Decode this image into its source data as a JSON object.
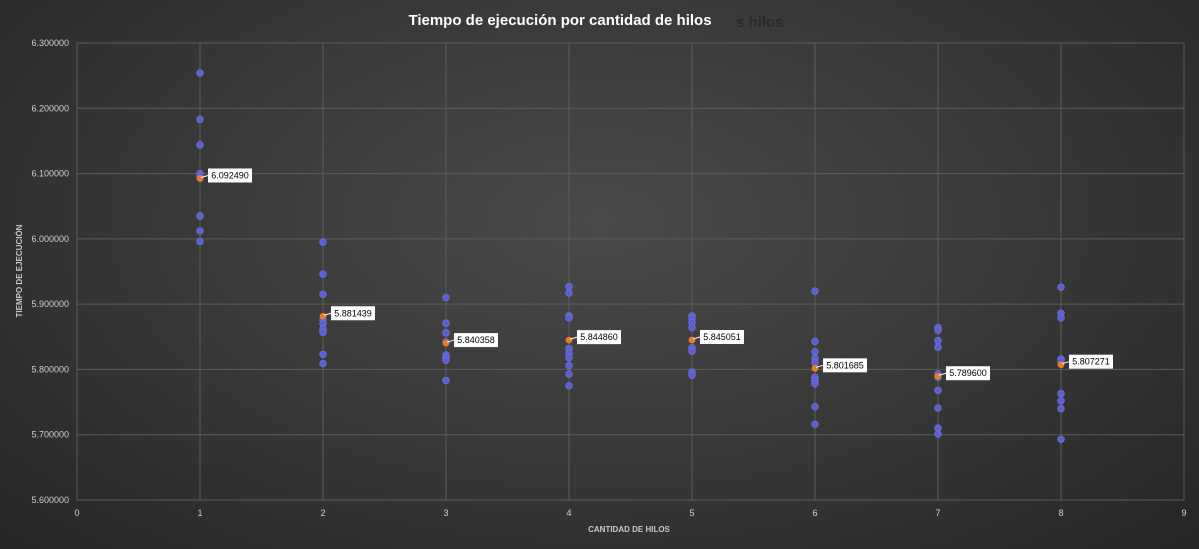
{
  "chart_data": {
    "type": "scatter",
    "title": "Tiempo de ejecución por cantidad de hilos",
    "title_ghost": "s hilos",
    "xlabel": "CANTIDAD DE HILOS",
    "ylabel": "TIEMPO DE EJECUCIÓN",
    "xlim": [
      0,
      9
    ],
    "ylim": [
      5.6,
      6.3
    ],
    "x_ticks": [
      "0",
      "1",
      "2",
      "3",
      "4",
      "5",
      "6",
      "7",
      "8",
      "9"
    ],
    "y_ticks": [
      "5.600000",
      "5.700000",
      "5.800000",
      "5.900000",
      "6.000000",
      "6.100000",
      "6.200000",
      "6.300000"
    ],
    "grid": true,
    "legend": "none",
    "colors": {
      "samples": "#5b5fd1",
      "average": "#e87a2e",
      "grid": "#5c5c5c",
      "text": "#d0d0d0",
      "label_bg": "#ffffff",
      "label_text": "#000000"
    },
    "series": [
      {
        "role": "samples",
        "points": [
          {
            "x": 1,
            "y": 6.254
          },
          {
            "x": 1,
            "y": 6.183
          },
          {
            "x": 1,
            "y": 6.144
          },
          {
            "x": 1,
            "y": 6.1
          },
          {
            "x": 1,
            "y": 6.095
          },
          {
            "x": 1,
            "y": 6.035
          },
          {
            "x": 1,
            "y": 6.012
          },
          {
            "x": 1,
            "y": 5.996
          },
          {
            "x": 2,
            "y": 5.995
          },
          {
            "x": 2,
            "y": 5.946
          },
          {
            "x": 2,
            "y": 5.915
          },
          {
            "x": 2,
            "y": 5.876
          },
          {
            "x": 2,
            "y": 5.87
          },
          {
            "x": 2,
            "y": 5.862
          },
          {
            "x": 2,
            "y": 5.857
          },
          {
            "x": 2,
            "y": 5.823
          },
          {
            "x": 2,
            "y": 5.809
          },
          {
            "x": 3,
            "y": 5.91
          },
          {
            "x": 3,
            "y": 5.871
          },
          {
            "x": 3,
            "y": 5.856
          },
          {
            "x": 3,
            "y": 5.842
          },
          {
            "x": 3,
            "y": 5.822
          },
          {
            "x": 3,
            "y": 5.818
          },
          {
            "x": 3,
            "y": 5.814
          },
          {
            "x": 3,
            "y": 5.783
          },
          {
            "x": 4,
            "y": 5.927
          },
          {
            "x": 4,
            "y": 5.917
          },
          {
            "x": 4,
            "y": 5.882
          },
          {
            "x": 4,
            "y": 5.879
          },
          {
            "x": 4,
            "y": 5.832
          },
          {
            "x": 4,
            "y": 5.825
          },
          {
            "x": 4,
            "y": 5.818
          },
          {
            "x": 4,
            "y": 5.806
          },
          {
            "x": 4,
            "y": 5.793
          },
          {
            "x": 4,
            "y": 5.775
          },
          {
            "x": 5,
            "y": 5.882
          },
          {
            "x": 5,
            "y": 5.878
          },
          {
            "x": 5,
            "y": 5.872
          },
          {
            "x": 5,
            "y": 5.864
          },
          {
            "x": 5,
            "y": 5.833
          },
          {
            "x": 5,
            "y": 5.828
          },
          {
            "x": 5,
            "y": 5.796
          },
          {
            "x": 5,
            "y": 5.791
          },
          {
            "x": 6,
            "y": 5.92
          },
          {
            "x": 6,
            "y": 5.843
          },
          {
            "x": 6,
            "y": 5.827
          },
          {
            "x": 6,
            "y": 5.817
          },
          {
            "x": 6,
            "y": 5.81
          },
          {
            "x": 6,
            "y": 5.788
          },
          {
            "x": 6,
            "y": 5.783
          },
          {
            "x": 6,
            "y": 5.778
          },
          {
            "x": 6,
            "y": 5.743
          },
          {
            "x": 6,
            "y": 5.716
          },
          {
            "x": 7,
            "y": 5.864
          },
          {
            "x": 7,
            "y": 5.86
          },
          {
            "x": 7,
            "y": 5.844
          },
          {
            "x": 7,
            "y": 5.834
          },
          {
            "x": 7,
            "y": 5.793
          },
          {
            "x": 7,
            "y": 5.788
          },
          {
            "x": 7,
            "y": 5.768
          },
          {
            "x": 7,
            "y": 5.741
          },
          {
            "x": 7,
            "y": 5.71
          },
          {
            "x": 7,
            "y": 5.701
          },
          {
            "x": 8,
            "y": 5.926
          },
          {
            "x": 8,
            "y": 5.886
          },
          {
            "x": 8,
            "y": 5.879
          },
          {
            "x": 8,
            "y": 5.816
          },
          {
            "x": 8,
            "y": 5.812
          },
          {
            "x": 8,
            "y": 5.763
          },
          {
            "x": 8,
            "y": 5.752
          },
          {
            "x": 8,
            "y": 5.74
          },
          {
            "x": 8,
            "y": 5.693
          }
        ]
      },
      {
        "role": "average",
        "points": [
          {
            "x": 1,
            "y": 6.09249,
            "label": "6.092490"
          },
          {
            "x": 2,
            "y": 5.881439,
            "label": "5.881439"
          },
          {
            "x": 3,
            "y": 5.840358,
            "label": "5.840358"
          },
          {
            "x": 4,
            "y": 5.84486,
            "label": "5.844860"
          },
          {
            "x": 5,
            "y": 5.845051,
            "label": "5.845051"
          },
          {
            "x": 6,
            "y": 5.801685,
            "label": "5.801685"
          },
          {
            "x": 7,
            "y": 5.7896,
            "label": "5.789600"
          },
          {
            "x": 8,
            "y": 5.807271,
            "label": "5.807271"
          }
        ]
      }
    ]
  }
}
